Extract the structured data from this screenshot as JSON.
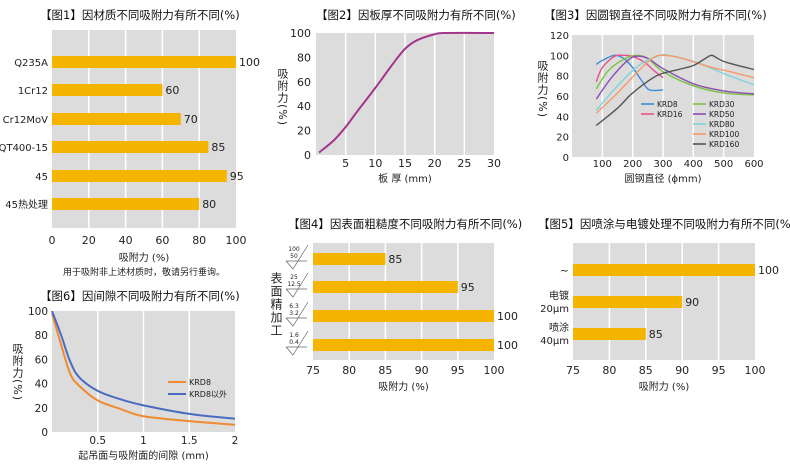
{
  "chart_data": [
    {
      "id": "fig1",
      "type": "bar",
      "orientation": "horizontal",
      "title": "【图1】因材质不同吸附力有所不同(%)",
      "categories": [
        "Q235A",
        "1Cr12",
        "Cr12MoV",
        "QT400-15",
        "45",
        "45热处理"
      ],
      "values": [
        100,
        60,
        70,
        85,
        95,
        80
      ],
      "xlabel": "吸附力 (%)",
      "xlim": [
        0,
        100
      ],
      "xticks": [
        0,
        20,
        40,
        60,
        80,
        100
      ],
      "note": "用于吸附非上述材质时，敬请另行垂询。",
      "grid": true,
      "bar_color": "#f5b400"
    },
    {
      "id": "fig2",
      "type": "line",
      "title": "【图2】因板厚不同吸附力有所不同(%)",
      "xlabel": "板 厚 (mm)",
      "ylabel": "吸附力(%)",
      "xlim": [
        0,
        30
      ],
      "ylim": [
        0,
        100
      ],
      "xticks": [
        5,
        10,
        15,
        20,
        25,
        30
      ],
      "yticks": [
        0,
        20,
        40,
        60,
        80,
        100
      ],
      "grid": true,
      "series": [
        {
          "name": "",
          "color": "#a4358c",
          "x": [
            0.5,
            3,
            5,
            7,
            10,
            13,
            15,
            17,
            20,
            22,
            30
          ],
          "y": [
            2,
            12,
            23,
            36,
            55,
            75,
            87,
            94,
            99,
            100,
            100
          ]
        }
      ]
    },
    {
      "id": "fig3",
      "type": "line",
      "title": "【图3】因圆钢直径不同吸附力有所不同(%)",
      "xlabel": "圆钢直径 (ϕmm)",
      "ylabel": "吸附力(%)",
      "xlim": [
        0,
        600
      ],
      "ylim": [
        0,
        120
      ],
      "xticks": [
        100,
        200,
        300,
        400,
        500,
        600
      ],
      "yticks": [
        0,
        20,
        40,
        60,
        80,
        100,
        120
      ],
      "grid": true,
      "legend": "inside-bottom-right",
      "series": [
        {
          "name": "KRD8",
          "color": "#3c8dd8",
          "x": [
            80,
            100,
            140,
            170,
            200,
            230,
            255,
            300
          ],
          "y": [
            91,
            95,
            100,
            97,
            88,
            75,
            66,
            66
          ]
        },
        {
          "name": "KRD16",
          "color": "#e8508a",
          "x": [
            80,
            100,
            140,
            170,
            200,
            240,
            270,
            300
          ],
          "y": [
            74,
            88,
            99,
            100,
            99,
            93,
            85,
            78
          ]
        },
        {
          "name": "KRD30",
          "color": "#7cc242",
          "x": [
            80,
            120,
            170,
            210,
            250,
            300,
            400,
            500,
            600
          ],
          "y": [
            67,
            85,
            96,
            100,
            97,
            84,
            70,
            63,
            61
          ]
        },
        {
          "name": "KRD50",
          "color": "#8a4fb0",
          "x": [
            80,
            130,
            180,
            210,
            250,
            300,
            400,
            500,
            600
          ],
          "y": [
            57,
            78,
            94,
            99,
            97,
            87,
            72,
            65,
            62
          ]
        },
        {
          "name": "KRD80",
          "color": "#7fd3dc",
          "x": [
            80,
            150,
            220,
            280,
            320,
            420,
            500,
            600
          ],
          "y": [
            46,
            70,
            90,
            99,
            100,
            92,
            82,
            71
          ]
        },
        {
          "name": "KRD100",
          "color": "#f59a6a",
          "x": [
            80,
            150,
            220,
            260,
            290,
            350,
            450,
            520,
            600
          ],
          "y": [
            43,
            63,
            85,
            96,
            100,
            98,
            89,
            84,
            78
          ]
        },
        {
          "name": "KRD160",
          "color": "#555555",
          "x": [
            80,
            150,
            200,
            280,
            350,
            400,
            440,
            460,
            480,
            510,
            600
          ],
          "y": [
            31,
            48,
            63,
            80,
            86,
            90,
            97,
            100,
            97,
            93,
            86
          ]
        }
      ]
    },
    {
      "id": "fig4",
      "type": "bar",
      "orientation": "horizontal",
      "title": "【图4】因表面粗糙度不同吸附力有所不同(%)",
      "ylabel": "表面精加工",
      "categories": [
        [
          "100",
          "50"
        ],
        [
          "25",
          "12.5"
        ],
        [
          "6.3",
          "3.2"
        ],
        [
          "1.6",
          "0.4"
        ]
      ],
      "values": [
        85,
        95,
        100,
        100
      ],
      "xlabel": "吸附力 (%)",
      "xlim": [
        75,
        100
      ],
      "xticks": [
        75,
        80,
        85,
        90,
        95,
        100
      ],
      "grid": true,
      "bar_color": "#f5b400"
    },
    {
      "id": "fig5",
      "type": "bar",
      "orientation": "horizontal",
      "title": "【图5】因喷涂与电镀处理不同吸附力有所不同(%)",
      "categories": [
        [
          "~"
        ],
        [
          "电镀",
          "20μm"
        ],
        [
          "喷涂",
          "40μm"
        ]
      ],
      "values": [
        100,
        90,
        85
      ],
      "xlabel": "吸附力 (%)",
      "xlim": [
        75,
        100
      ],
      "xticks": [
        75,
        80,
        85,
        90,
        95,
        100
      ],
      "grid": true,
      "bar_color": "#f5b400"
    },
    {
      "id": "fig6",
      "type": "line",
      "title": "【图6】因间隙不同吸附力有所不同(%)",
      "xlabel": "起吊面与吸附面的间隙 (mm)",
      "ylabel": "吸附力(%)",
      "xlim": [
        0,
        2
      ],
      "ylim": [
        0,
        100
      ],
      "xticks": [
        0.5,
        1,
        1.5,
        2
      ],
      "yticks": [
        0,
        20,
        40,
        60,
        80,
        100
      ],
      "grid": true,
      "legend": "inside-right",
      "series": [
        {
          "name": "KRD8",
          "color": "#f08a30",
          "x": [
            0,
            0.1,
            0.2,
            0.3,
            0.5,
            0.75,
            1,
            1.5,
            2
          ],
          "y": [
            98,
            72,
            48,
            38,
            26,
            19,
            13,
            9,
            6
          ]
        },
        {
          "name": "KRD8以外",
          "color": "#4a6cc0",
          "x": [
            0,
            0.1,
            0.2,
            0.3,
            0.5,
            0.75,
            1,
            1.5,
            2
          ],
          "y": [
            100,
            80,
            58,
            45,
            34,
            27,
            22,
            15,
            11
          ]
        }
      ]
    }
  ]
}
